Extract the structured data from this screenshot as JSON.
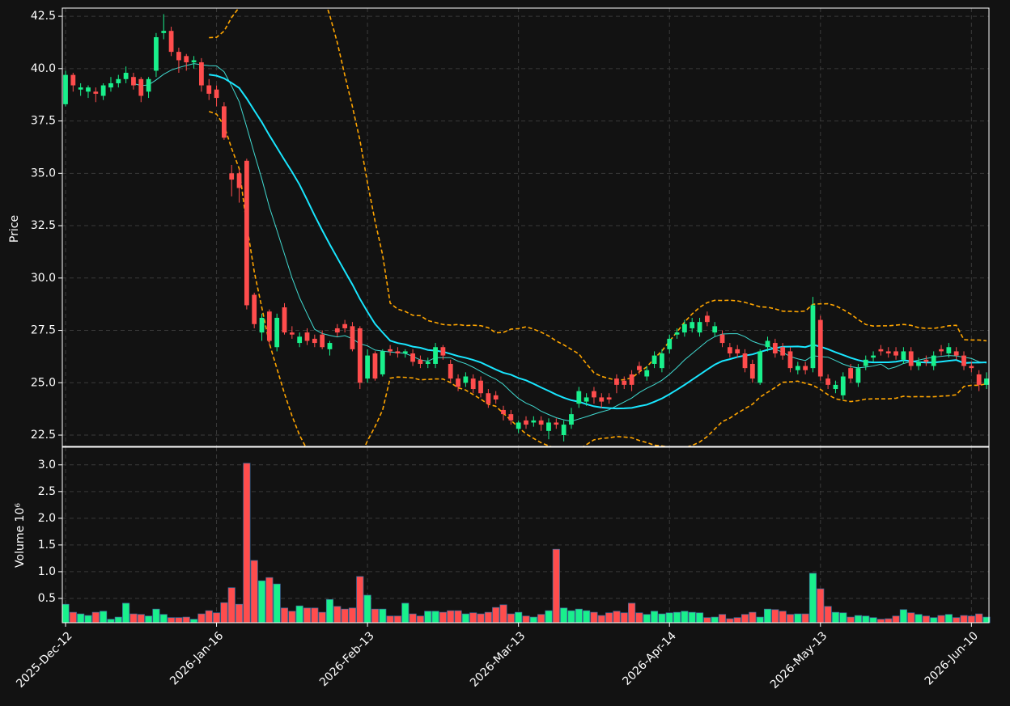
{
  "chart_data": {
    "type": "candlestick",
    "categories": [
      "2025-Dec-12",
      null,
      null,
      null,
      null,
      null,
      null,
      null,
      null,
      null,
      null,
      null,
      null,
      null,
      null,
      null,
      null,
      null,
      null,
      null,
      "2026-Jan-16",
      null,
      null,
      null,
      null,
      null,
      null,
      null,
      null,
      null,
      null,
      null,
      null,
      null,
      null,
      null,
      null,
      null,
      null,
      null,
      "2026-Feb-13",
      null,
      null,
      null,
      null,
      null,
      null,
      null,
      null,
      null,
      null,
      null,
      null,
      null,
      null,
      null,
      null,
      null,
      null,
      null,
      "2026-Mar-13",
      null,
      null,
      null,
      null,
      null,
      null,
      null,
      null,
      null,
      null,
      null,
      null,
      null,
      null,
      null,
      null,
      null,
      null,
      null,
      "2026-Apr-14",
      null,
      null,
      null,
      null,
      null,
      null,
      null,
      null,
      null,
      null,
      null,
      null,
      null,
      null,
      null,
      null,
      null,
      null,
      null,
      "2026-May-13",
      null,
      null,
      null,
      null,
      null,
      null,
      null,
      null,
      null,
      null,
      null,
      null,
      null,
      null,
      null,
      null,
      null,
      null,
      null,
      "2026-Jun-10",
      null,
      null
    ],
    "open": [
      38.3,
      39.7,
      39.0,
      38.9,
      38.9,
      38.7,
      39.1,
      39.3,
      39.5,
      39.6,
      39.5,
      38.9,
      39.9,
      41.7,
      41.8,
      40.8,
      40.6,
      40.3,
      40.3,
      39.2,
      39.0,
      38.2,
      35.0,
      35.0,
      35.6,
      29.2,
      27.4,
      28.4,
      26.7,
      28.6,
      27.4,
      26.9,
      27.4,
      27.1,
      27.3,
      26.6,
      27.6,
      27.8,
      27.7,
      27.6,
      25.2,
      26.4,
      25.4,
      26.6,
      26.5,
      26.4,
      26.4,
      26.1,
      25.9,
      25.9,
      26.7,
      25.9,
      25.2,
      25.0,
      25.2,
      25.1,
      24.5,
      24.4,
      23.7,
      23.5,
      22.8,
      23.2,
      23.1,
      23.2,
      22.7,
      23.1,
      22.5,
      23.0,
      24.0,
      24.1,
      24.6,
      24.3,
      24.3,
      25.2,
      25.1,
      25.4,
      25.8,
      25.3,
      25.9,
      25.7,
      26.6,
      27.3,
      27.4,
      27.6,
      27.4,
      28.2,
      27.4,
      27.3,
      26.7,
      26.6,
      26.4,
      25.9,
      25.0,
      26.7,
      26.9,
      26.7,
      26.5,
      25.6,
      25.8,
      25.7,
      28.0,
      25.2,
      24.7,
      24.4,
      25.7,
      25.0,
      25.8,
      26.2,
      26.6,
      26.5,
      26.5,
      26.1,
      26.5,
      25.8,
      26.1,
      25.8,
      26.6,
      26.4,
      26.5,
      26.3,
      25.8,
      25.4,
      24.9
    ],
    "high": [
      39.9,
      39.8,
      39.3,
      39.2,
      39.1,
      39.3,
      39.6,
      39.7,
      40.1,
      39.8,
      39.6,
      39.6,
      41.7,
      42.6,
      42.0,
      41.0,
      40.7,
      40.6,
      40.5,
      39.5,
      39.2,
      38.4,
      35.4,
      35.2,
      35.7,
      29.3,
      28.3,
      28.5,
      28.3,
      28.8,
      27.7,
      27.4,
      27.6,
      27.3,
      27.5,
      27.0,
      27.8,
      28.0,
      27.9,
      27.7,
      26.6,
      26.5,
      26.6,
      26.8,
      26.7,
      26.6,
      26.6,
      26.3,
      26.2,
      26.9,
      26.8,
      26.1,
      25.4,
      25.5,
      25.4,
      25.3,
      24.7,
      24.6,
      23.9,
      23.7,
      23.2,
      23.4,
      23.4,
      23.4,
      23.3,
      23.3,
      23.2,
      23.8,
      24.8,
      24.5,
      24.8,
      24.5,
      24.5,
      25.4,
      25.3,
      25.6,
      26.0,
      25.8,
      26.5,
      26.6,
      27.3,
      27.6,
      28.0,
      28.1,
      28.1,
      28.4,
      27.9,
      27.5,
      26.9,
      26.8,
      26.6,
      26.1,
      26.6,
      27.2,
      27.1,
      26.9,
      26.7,
      26.0,
      26.0,
      29.1,
      28.2,
      25.4,
      25.1,
      25.5,
      25.9,
      25.9,
      26.3,
      26.5,
      26.8,
      26.7,
      26.7,
      26.7,
      26.7,
      26.2,
      26.3,
      26.5,
      26.8,
      26.9,
      26.7,
      26.5,
      26.0,
      25.6,
      25.5
    ],
    "low": [
      38.2,
      38.9,
      38.7,
      38.6,
      38.4,
      38.5,
      38.9,
      39.1,
      39.3,
      39.0,
      38.4,
      38.6,
      39.6,
      41.4,
      40.6,
      39.8,
      39.9,
      40.0,
      38.9,
      38.5,
      38.2,
      36.6,
      33.9,
      33.6,
      28.5,
      27.6,
      27.0,
      26.8,
      26.5,
      27.3,
      27.1,
      26.7,
      26.8,
      26.7,
      26.6,
      26.3,
      27.2,
      27.4,
      26.5,
      24.7,
      25.0,
      25.1,
      25.3,
      26.3,
      26.2,
      26.2,
      25.8,
      25.7,
      25.7,
      25.7,
      26.1,
      25.0,
      24.6,
      24.8,
      24.5,
      24.3,
      23.8,
      24.0,
      23.2,
      23.0,
      22.6,
      22.8,
      22.9,
      22.7,
      22.3,
      22.8,
      22.2,
      22.8,
      23.8,
      23.9,
      24.0,
      23.8,
      24.0,
      24.5,
      24.7,
      24.6,
      25.4,
      25.1,
      25.7,
      25.5,
      26.4,
      27.1,
      27.2,
      27.4,
      27.2,
      27.7,
      27.2,
      26.7,
      26.2,
      26.2,
      25.5,
      25.0,
      24.9,
      26.5,
      26.2,
      26.1,
      25.5,
      25.4,
      25.4,
      25.5,
      25.1,
      24.7,
      24.5,
      24.2,
      25.0,
      24.8,
      25.6,
      26.0,
      26.3,
      26.2,
      26.1,
      25.9,
      25.6,
      25.6,
      25.8,
      25.6,
      26.3,
      26.2,
      26.1,
      25.6,
      25.5,
      24.6,
      24.7
    ],
    "close": [
      39.7,
      39.2,
      39.1,
      39.1,
      38.8,
      39.2,
      39.3,
      39.5,
      39.8,
      39.2,
      38.7,
      39.5,
      41.5,
      41.8,
      40.8,
      40.4,
      40.3,
      40.4,
      39.2,
      38.8,
      38.6,
      36.7,
      34.7,
      34.3,
      28.7,
      27.8,
      28.1,
      27.0,
      28.1,
      27.4,
      27.3,
      27.2,
      27.0,
      26.9,
      26.7,
      26.9,
      27.4,
      27.6,
      26.6,
      25.0,
      26.3,
      25.2,
      26.5,
      26.5,
      26.4,
      26.5,
      26.0,
      25.9,
      26.0,
      26.7,
      26.3,
      25.2,
      24.8,
      25.3,
      24.7,
      24.5,
      24.0,
      24.2,
      23.5,
      23.2,
      23.1,
      23.0,
      23.2,
      23.0,
      23.1,
      23.0,
      23.0,
      23.5,
      24.6,
      24.3,
      24.3,
      24.1,
      24.2,
      24.9,
      24.9,
      24.9,
      25.6,
      25.6,
      26.3,
      26.4,
      27.1,
      27.4,
      27.8,
      27.9,
      27.9,
      27.9,
      27.7,
      26.9,
      26.4,
      26.4,
      25.7,
      25.2,
      26.5,
      27.0,
      26.4,
      26.3,
      25.7,
      25.8,
      25.6,
      28.7,
      25.3,
      24.9,
      24.9,
      25.3,
      25.2,
      25.7,
      26.1,
      26.3,
      26.5,
      26.4,
      26.3,
      26.5,
      25.8,
      26.0,
      26.0,
      26.3,
      26.5,
      26.7,
      26.3,
      25.8,
      25.7,
      24.9,
      25.2
    ],
    "volume": [
      0.39,
      0.24,
      0.21,
      0.18,
      0.24,
      0.26,
      0.11,
      0.15,
      0.41,
      0.21,
      0.2,
      0.17,
      0.3,
      0.2,
      0.14,
      0.14,
      0.15,
      0.11,
      0.21,
      0.27,
      0.23,
      0.42,
      0.7,
      0.39,
      3.03,
      1.21,
      0.83,
      0.89,
      0.77,
      0.32,
      0.26,
      0.36,
      0.32,
      0.32,
      0.24,
      0.48,
      0.35,
      0.3,
      0.32,
      0.91,
      0.56,
      0.3,
      0.3,
      0.17,
      0.17,
      0.41,
      0.21,
      0.17,
      0.26,
      0.26,
      0.24,
      0.27,
      0.27,
      0.21,
      0.23,
      0.21,
      0.24,
      0.33,
      0.38,
      0.21,
      0.24,
      0.17,
      0.15,
      0.2,
      0.27,
      1.42,
      0.32,
      0.27,
      0.3,
      0.27,
      0.24,
      0.18,
      0.23,
      0.26,
      0.23,
      0.41,
      0.23,
      0.2,
      0.26,
      0.21,
      0.23,
      0.24,
      0.26,
      0.24,
      0.23,
      0.14,
      0.15,
      0.2,
      0.12,
      0.14,
      0.2,
      0.24,
      0.15,
      0.3,
      0.29,
      0.26,
      0.2,
      0.21,
      0.21,
      0.97,
      0.68,
      0.35,
      0.24,
      0.23,
      0.15,
      0.18,
      0.17,
      0.14,
      0.11,
      0.12,
      0.17,
      0.29,
      0.23,
      0.2,
      0.17,
      0.14,
      0.18,
      0.2,
      0.14,
      0.18,
      0.17,
      0.21,
      0.15
    ],
    "ylim": [
      21.96,
      42.89
    ],
    "yticks": [
      22.5,
      {
        "value": 25,
        "label": "25.0"
      },
      27.5,
      {
        "value": 30,
        "label": "30.0"
      },
      32.5,
      {
        "value": 35,
        "label": "35.0"
      },
      37.5,
      {
        "value": 40,
        "label": "40.0"
      },
      42.5
    ],
    "ylabel": "Price",
    "volume_ylim": [
      0.045,
      3.33
    ],
    "volume_yticks": [
      0.5,
      {
        "value": 1,
        "label": "1.0"
      },
      1.5,
      {
        "value": 2,
        "label": "2.0"
      },
      2.5,
      {
        "value": 3,
        "label": "3.0"
      }
    ],
    "volume_ylabel": "Volume  10⁶",
    "up_color": "#19f08c",
    "down_color": "#ff4d4d",
    "grid": true
  }
}
